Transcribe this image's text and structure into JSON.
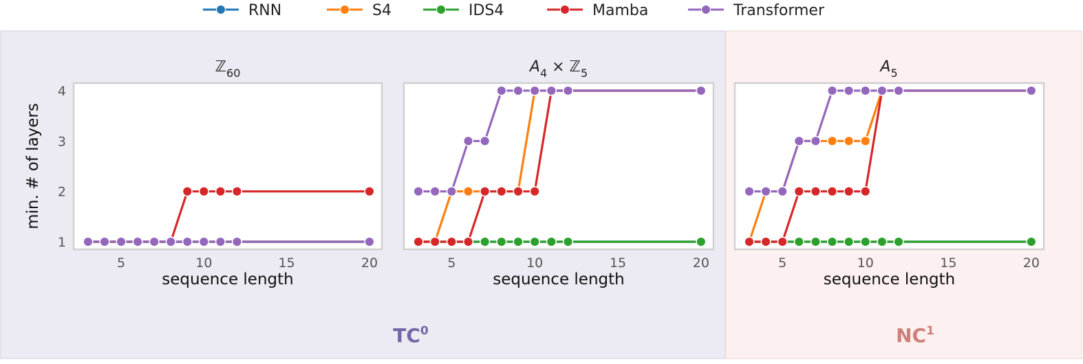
{
  "legend": {
    "placement": "top-center",
    "entries": [
      {
        "name": "RNN",
        "color": "#1f77b4"
      },
      {
        "name": "S4",
        "color": "#ff7f0e"
      },
      {
        "name": "IDS4",
        "color": "#2ca02c"
      },
      {
        "name": "Mamba",
        "color": "#d62728"
      },
      {
        "name": "Transformer",
        "color": "#9467bd"
      }
    ]
  },
  "regions": [
    {
      "label_main": "TC",
      "label_sup": "0",
      "label_color": "#7466a8",
      "background": "#eceaf2"
    },
    {
      "label_main": "NC",
      "label_sup": "1",
      "label_color": "#cf7f7a",
      "background": "#fcf0f0"
    }
  ],
  "chart_data": [
    {
      "type": "line",
      "title": {
        "main": "ℤ",
        "sub": "60",
        "rest": ""
      },
      "xlabel": "sequence length",
      "ylabel": "min. # of layers",
      "xlim": [
        2.13,
        20.75
      ],
      "ylim": [
        0.85,
        4.15
      ],
      "xticks": [
        5,
        10,
        15,
        20
      ],
      "yticks": [
        1,
        2,
        3,
        4
      ],
      "grid": false,
      "x": [
        3,
        4,
        5,
        6,
        7,
        8,
        9,
        10,
        11,
        12,
        20
      ],
      "series": [
        {
          "name": "RNN",
          "values": [
            1,
            1,
            1,
            1,
            1,
            1,
            1,
            1,
            1,
            1,
            1
          ]
        },
        {
          "name": "S4",
          "values": [
            1,
            1,
            1,
            1,
            1,
            1,
            1,
            1,
            1,
            1,
            1
          ]
        },
        {
          "name": "IDS4",
          "values": [
            1,
            1,
            1,
            1,
            1,
            1,
            1,
            1,
            1,
            1,
            1
          ]
        },
        {
          "name": "Mamba",
          "values": [
            1,
            1,
            1,
            1,
            1,
            1,
            2,
            2,
            2,
            2,
            2
          ]
        },
        {
          "name": "Transformer",
          "values": [
            1,
            1,
            1,
            1,
            1,
            1,
            1,
            1,
            1,
            1,
            1
          ]
        }
      ]
    },
    {
      "type": "line",
      "title": {
        "main": "A",
        "sub": "4",
        "rest": " × ℤ",
        "sub2": "5"
      },
      "xlabel": "sequence length",
      "ylabel": "",
      "xlim": [
        2.13,
        20.75
      ],
      "ylim": [
        0.85,
        4.15
      ],
      "xticks": [
        5,
        10,
        15,
        20
      ],
      "yticks": [
        1,
        2,
        3,
        4
      ],
      "grid": false,
      "x": [
        3,
        4,
        5,
        6,
        7,
        8,
        9,
        10,
        11,
        12,
        20
      ],
      "series": [
        {
          "name": "RNN",
          "values": [
            1,
            1,
            1,
            1,
            1,
            1,
            1,
            1,
            1,
            1,
            1
          ]
        },
        {
          "name": "S4",
          "values": [
            1,
            1,
            2,
            2,
            2,
            2,
            2,
            4,
            4,
            4,
            4
          ]
        },
        {
          "name": "IDS4",
          "values": [
            1,
            1,
            1,
            1,
            1,
            1,
            1,
            1,
            1,
            1,
            1
          ]
        },
        {
          "name": "Mamba",
          "values": [
            1,
            1,
            1,
            1,
            2,
            2,
            2,
            2,
            4,
            4,
            4
          ]
        },
        {
          "name": "Transformer",
          "values": [
            2,
            2,
            2,
            3,
            3,
            4,
            4,
            4,
            4,
            4,
            4
          ]
        }
      ]
    },
    {
      "type": "line",
      "title": {
        "main": "A",
        "sub": "5",
        "rest": ""
      },
      "xlabel": "sequence length",
      "ylabel": "",
      "xlim": [
        2.13,
        20.75
      ],
      "ylim": [
        0.85,
        4.15
      ],
      "xticks": [
        5,
        10,
        15,
        20
      ],
      "yticks": [
        1,
        2,
        3,
        4
      ],
      "grid": false,
      "x": [
        3,
        4,
        5,
        6,
        7,
        8,
        9,
        10,
        11,
        12,
        20
      ],
      "series": [
        {
          "name": "RNN",
          "values": [
            1,
            1,
            1,
            1,
            1,
            1,
            1,
            1,
            1,
            1,
            1
          ]
        },
        {
          "name": "S4",
          "values": [
            1,
            2,
            2,
            3,
            3,
            3,
            3,
            3,
            4,
            4,
            4
          ]
        },
        {
          "name": "IDS4",
          "values": [
            1,
            1,
            1,
            1,
            1,
            1,
            1,
            1,
            1,
            1,
            1
          ]
        },
        {
          "name": "Mamba",
          "values": [
            1,
            1,
            1,
            2,
            2,
            2,
            2,
            2,
            4,
            4,
            4
          ]
        },
        {
          "name": "Transformer",
          "values": [
            2,
            2,
            2,
            3,
            3,
            4,
            4,
            4,
            4,
            4,
            4
          ]
        }
      ]
    }
  ]
}
